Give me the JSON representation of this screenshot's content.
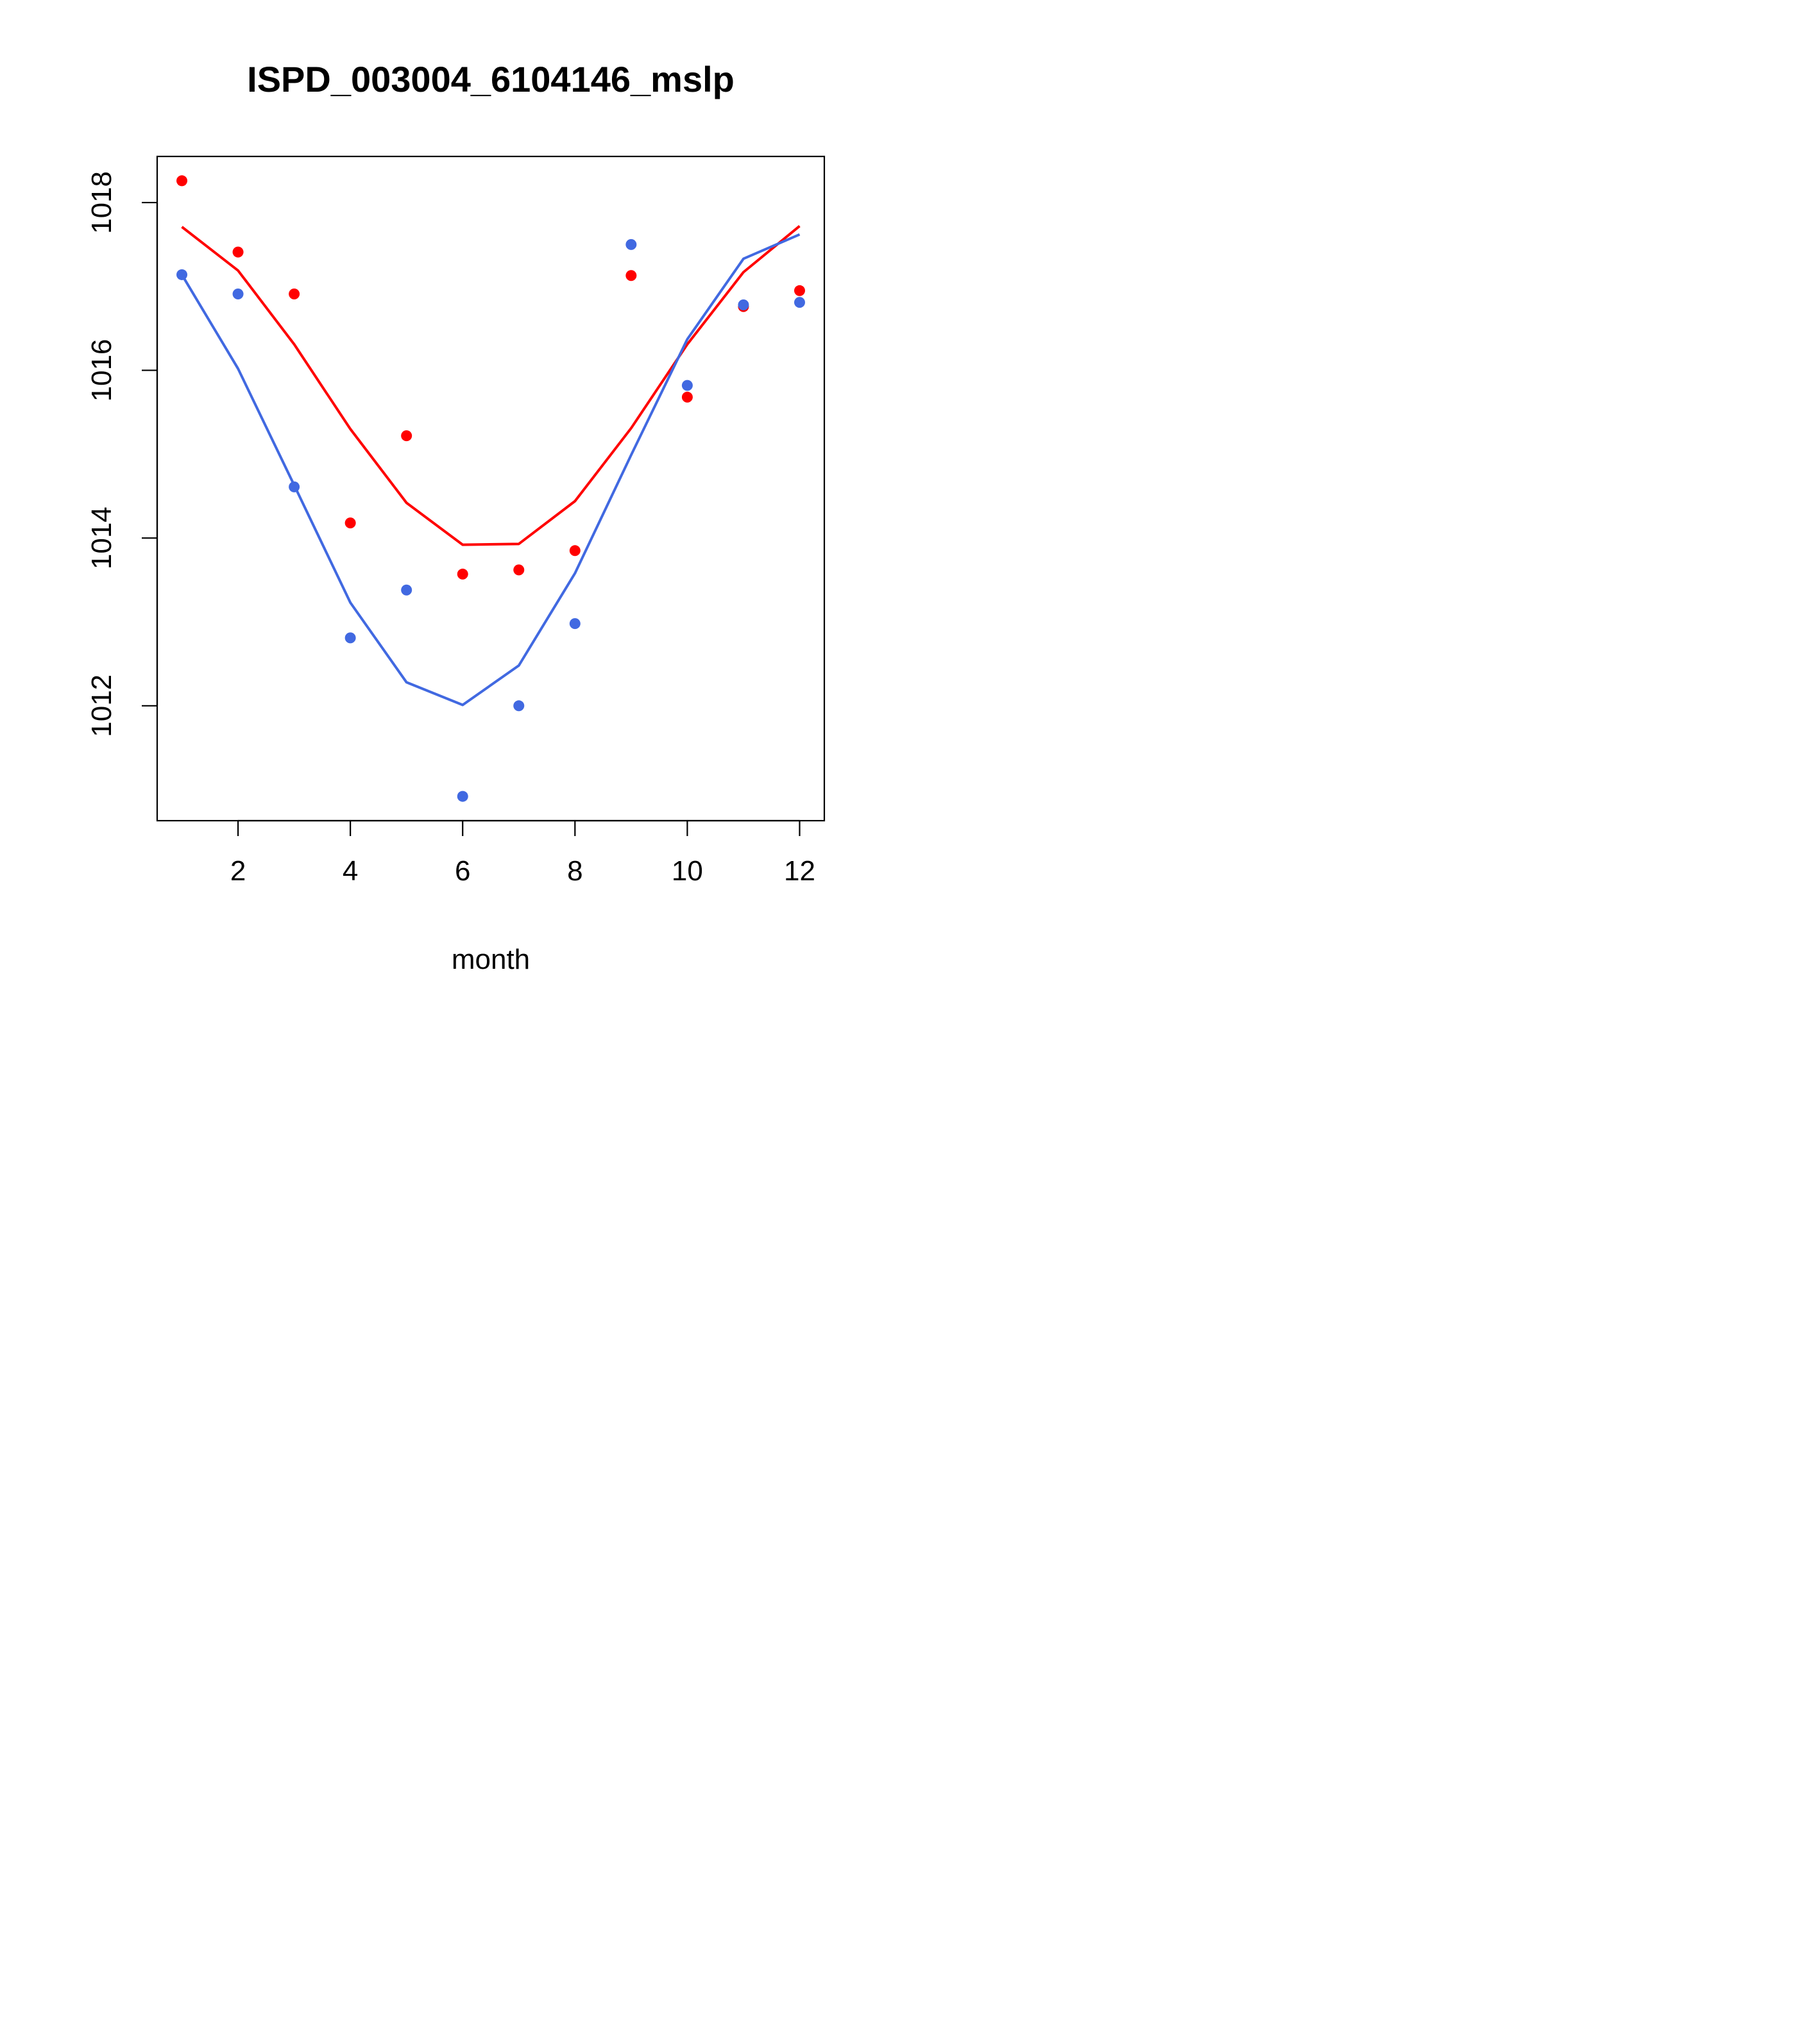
{
  "chart_data": {
    "type": "scatter",
    "title": "ISPD_003004_6104146_mslp",
    "xlabel": "month",
    "ylabel": "",
    "xlim": [
      0.56,
      12.44
    ],
    "ylim": [
      1010.63,
      1018.55
    ],
    "x_ticks": [
      2,
      4,
      6,
      8,
      10,
      12
    ],
    "y_ticks": [
      1012,
      1014,
      1016,
      1018
    ],
    "grid": false,
    "series": [
      {
        "name": "red points",
        "kind": "points",
        "color": "#ff0000",
        "x": [
          1,
          2,
          3,
          4,
          5,
          6,
          7,
          8,
          9,
          10,
          11,
          12
        ],
        "y": [
          1018.26,
          1017.41,
          1016.91,
          1014.18,
          1015.22,
          1013.57,
          1013.62,
          1013.85,
          1017.13,
          1015.68,
          1016.76,
          1016.95
        ]
      },
      {
        "name": "red line",
        "kind": "line",
        "color": "#ff0000",
        "x": [
          1,
          2,
          3,
          4,
          5,
          6,
          7,
          8,
          9,
          10,
          11,
          12
        ],
        "y": [
          1017.71,
          1017.19,
          1016.31,
          1015.3,
          1014.42,
          1013.92,
          1013.93,
          1014.44,
          1015.31,
          1016.31,
          1017.17,
          1017.72
        ]
      },
      {
        "name": "blue points",
        "kind": "points",
        "color": "#4169e1",
        "x": [
          1,
          2,
          3,
          4,
          5,
          6,
          7,
          8,
          9,
          10,
          11,
          12
        ],
        "y": [
          1017.14,
          1016.91,
          1014.61,
          1012.81,
          1013.38,
          1010.92,
          1012.0,
          1012.98,
          1017.5,
          1015.82,
          1016.78,
          1016.81
        ]
      },
      {
        "name": "blue line",
        "kind": "line",
        "color": "#4169e1",
        "x": [
          1,
          2,
          3,
          4,
          5,
          6,
          7,
          8,
          9,
          10,
          11,
          12
        ],
        "y": [
          1017.14,
          1016.02,
          1014.63,
          1013.23,
          1012.28,
          1012.01,
          1012.48,
          1013.58,
          1014.99,
          1016.37,
          1017.33,
          1017.62
        ]
      }
    ]
  }
}
